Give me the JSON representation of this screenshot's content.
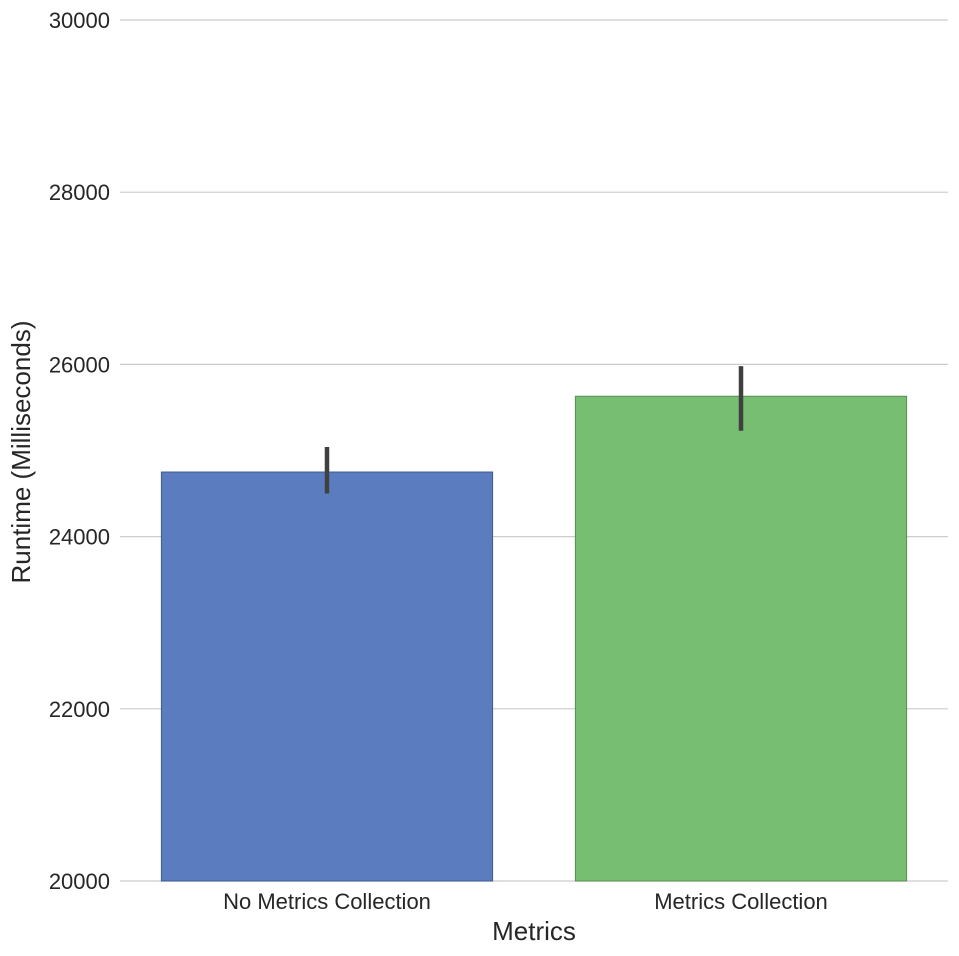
{
  "chart_data": {
    "type": "bar",
    "title": "",
    "xlabel": "Metrics",
    "ylabel": "Runtime (Milliseconds)",
    "categories": [
      "No Metrics Collection",
      "Metrics Collection"
    ],
    "values": [
      24750,
      25630
    ],
    "error_bars": [
      {
        "low": 24500,
        "high": 25040
      },
      {
        "low": 25230,
        "high": 25980
      }
    ],
    "colors": [
      "#5b7dbf",
      "#77be72"
    ],
    "edge_colors": [
      "#3f5a8f",
      "#55904f"
    ],
    "error_bar_color": "#404040",
    "ylim": [
      20000,
      30000
    ],
    "yticks": [
      20000,
      22000,
      24000,
      26000,
      28000,
      30000
    ],
    "grid": "horizontal",
    "legend": "none"
  }
}
